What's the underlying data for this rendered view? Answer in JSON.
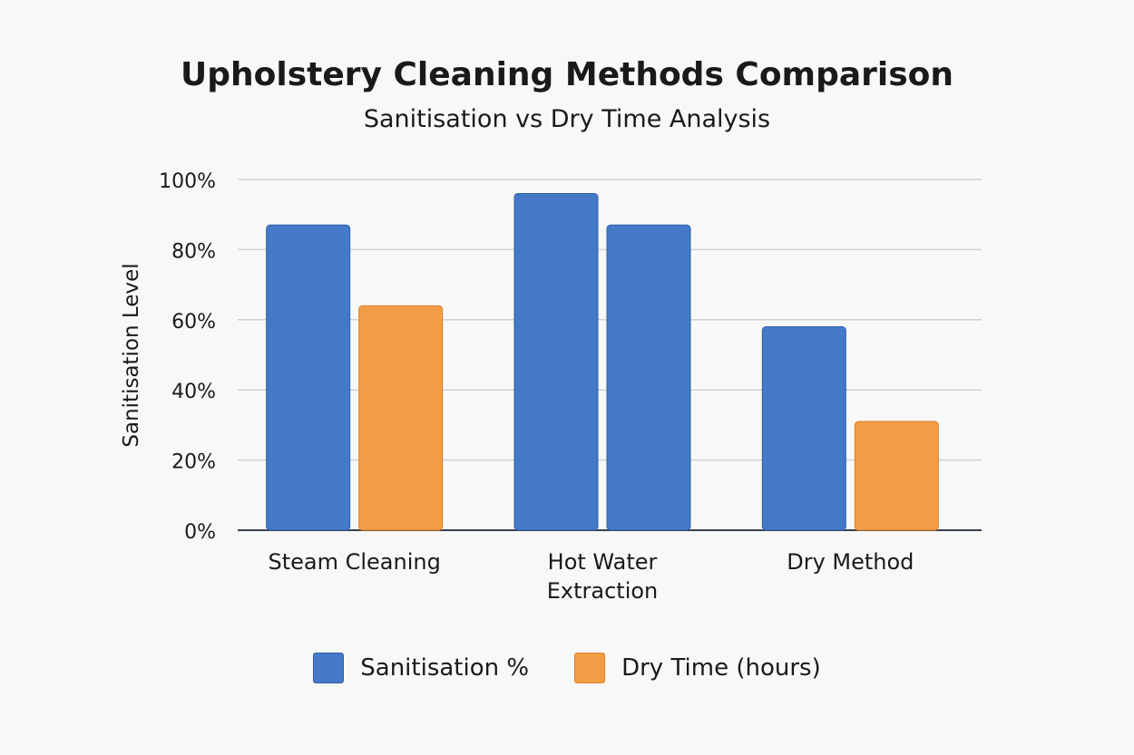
{
  "chart_data": {
    "type": "bar",
    "title": "Upholstery Cleaning Methods Comparison",
    "subtitle": "Sanitisation vs Dry Time Analysis",
    "ylabel": "Sanitisation Level",
    "xlabel": "",
    "ylim": [
      0,
      100
    ],
    "yticks": [
      "0%",
      "20%",
      "40%",
      "60%",
      "80%",
      "100%"
    ],
    "categories": [
      [
        "Steam Cleaning"
      ],
      [
        "Hot Water",
        "Extraction"
      ],
      [
        "Dry Method"
      ]
    ],
    "series": [
      {
        "name": "Sanitisation %",
        "values": [
          87,
          96,
          58
        ],
        "color": "#4479c8",
        "bar_colors": [
          "#4479c8",
          "#4479c8",
          "#4479c8"
        ]
      },
      {
        "name": "Dry Time (hours)",
        "values": [
          64,
          87,
          31
        ],
        "color": "#f29d45",
        "bar_colors": [
          "#f29d45",
          "#4479c8",
          "#f29d45"
        ]
      }
    ],
    "grid": true,
    "legend": "bottom"
  }
}
